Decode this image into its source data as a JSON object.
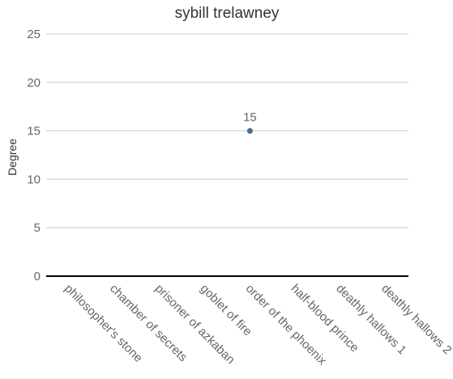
{
  "chart_data": {
    "type": "scatter",
    "title": "sybill trelawney",
    "xlabel": "",
    "ylabel": "Degree",
    "ylim": [
      0,
      25
    ],
    "yticks": [
      0,
      5,
      10,
      15,
      20,
      25
    ],
    "categories": [
      "philosopher's stone",
      "chamber of secrets",
      "prisoner of azkaban",
      "goblet of fire",
      "order of the phoenix",
      "half-blood prince",
      "deathly hallows 1",
      "deathly hallows 2"
    ],
    "series": [
      {
        "values": [
          null,
          null,
          null,
          null,
          15,
          null,
          null,
          null
        ],
        "color": "#4a6d8c"
      }
    ],
    "data_labels": true,
    "grid": true,
    "legend": "none"
  }
}
